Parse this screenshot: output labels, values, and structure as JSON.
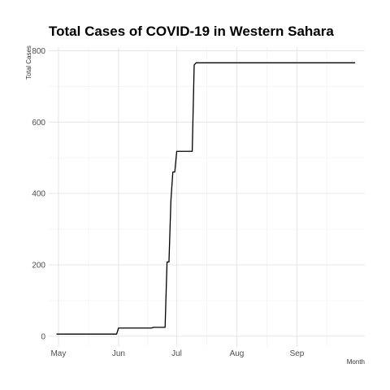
{
  "chart_data": {
    "type": "line",
    "title": "Total Cases of COVID-19 in Western Sahara",
    "xlabel": "Month",
    "ylabel": "Total Cases",
    "x_tick_labels": [
      "May",
      "Jun",
      "Jul",
      "Aug",
      "Sep"
    ],
    "x_tick_dates": [
      "2020-05-01",
      "2020-06-01",
      "2020-07-01",
      "2020-08-01",
      "2020-09-01"
    ],
    "y_ticks": [
      0,
      200,
      400,
      600,
      800
    ],
    "xlim": [
      "2020-04-26",
      "2020-10-06"
    ],
    "ylim": [
      -30,
      810
    ],
    "grid": true,
    "series": [
      {
        "color": "#000000",
        "points": [
          {
            "x": "2020-04-30",
            "y": 6
          },
          {
            "x": "2020-05-31",
            "y": 6
          },
          {
            "x": "2020-06-01",
            "y": 23
          },
          {
            "x": "2020-06-18",
            "y": 23
          },
          {
            "x": "2020-06-19",
            "y": 25
          },
          {
            "x": "2020-06-25",
            "y": 25
          },
          {
            "x": "2020-06-26",
            "y": 208
          },
          {
            "x": "2020-06-27",
            "y": 208
          },
          {
            "x": "2020-06-28",
            "y": 380
          },
          {
            "x": "2020-06-29",
            "y": 460
          },
          {
            "x": "2020-06-30",
            "y": 460
          },
          {
            "x": "2020-07-01",
            "y": 518
          },
          {
            "x": "2020-07-09",
            "y": 518
          },
          {
            "x": "2020-07-10",
            "y": 760
          },
          {
            "x": "2020-07-11",
            "y": 766
          },
          {
            "x": "2020-10-01",
            "y": 766
          }
        ]
      }
    ]
  }
}
